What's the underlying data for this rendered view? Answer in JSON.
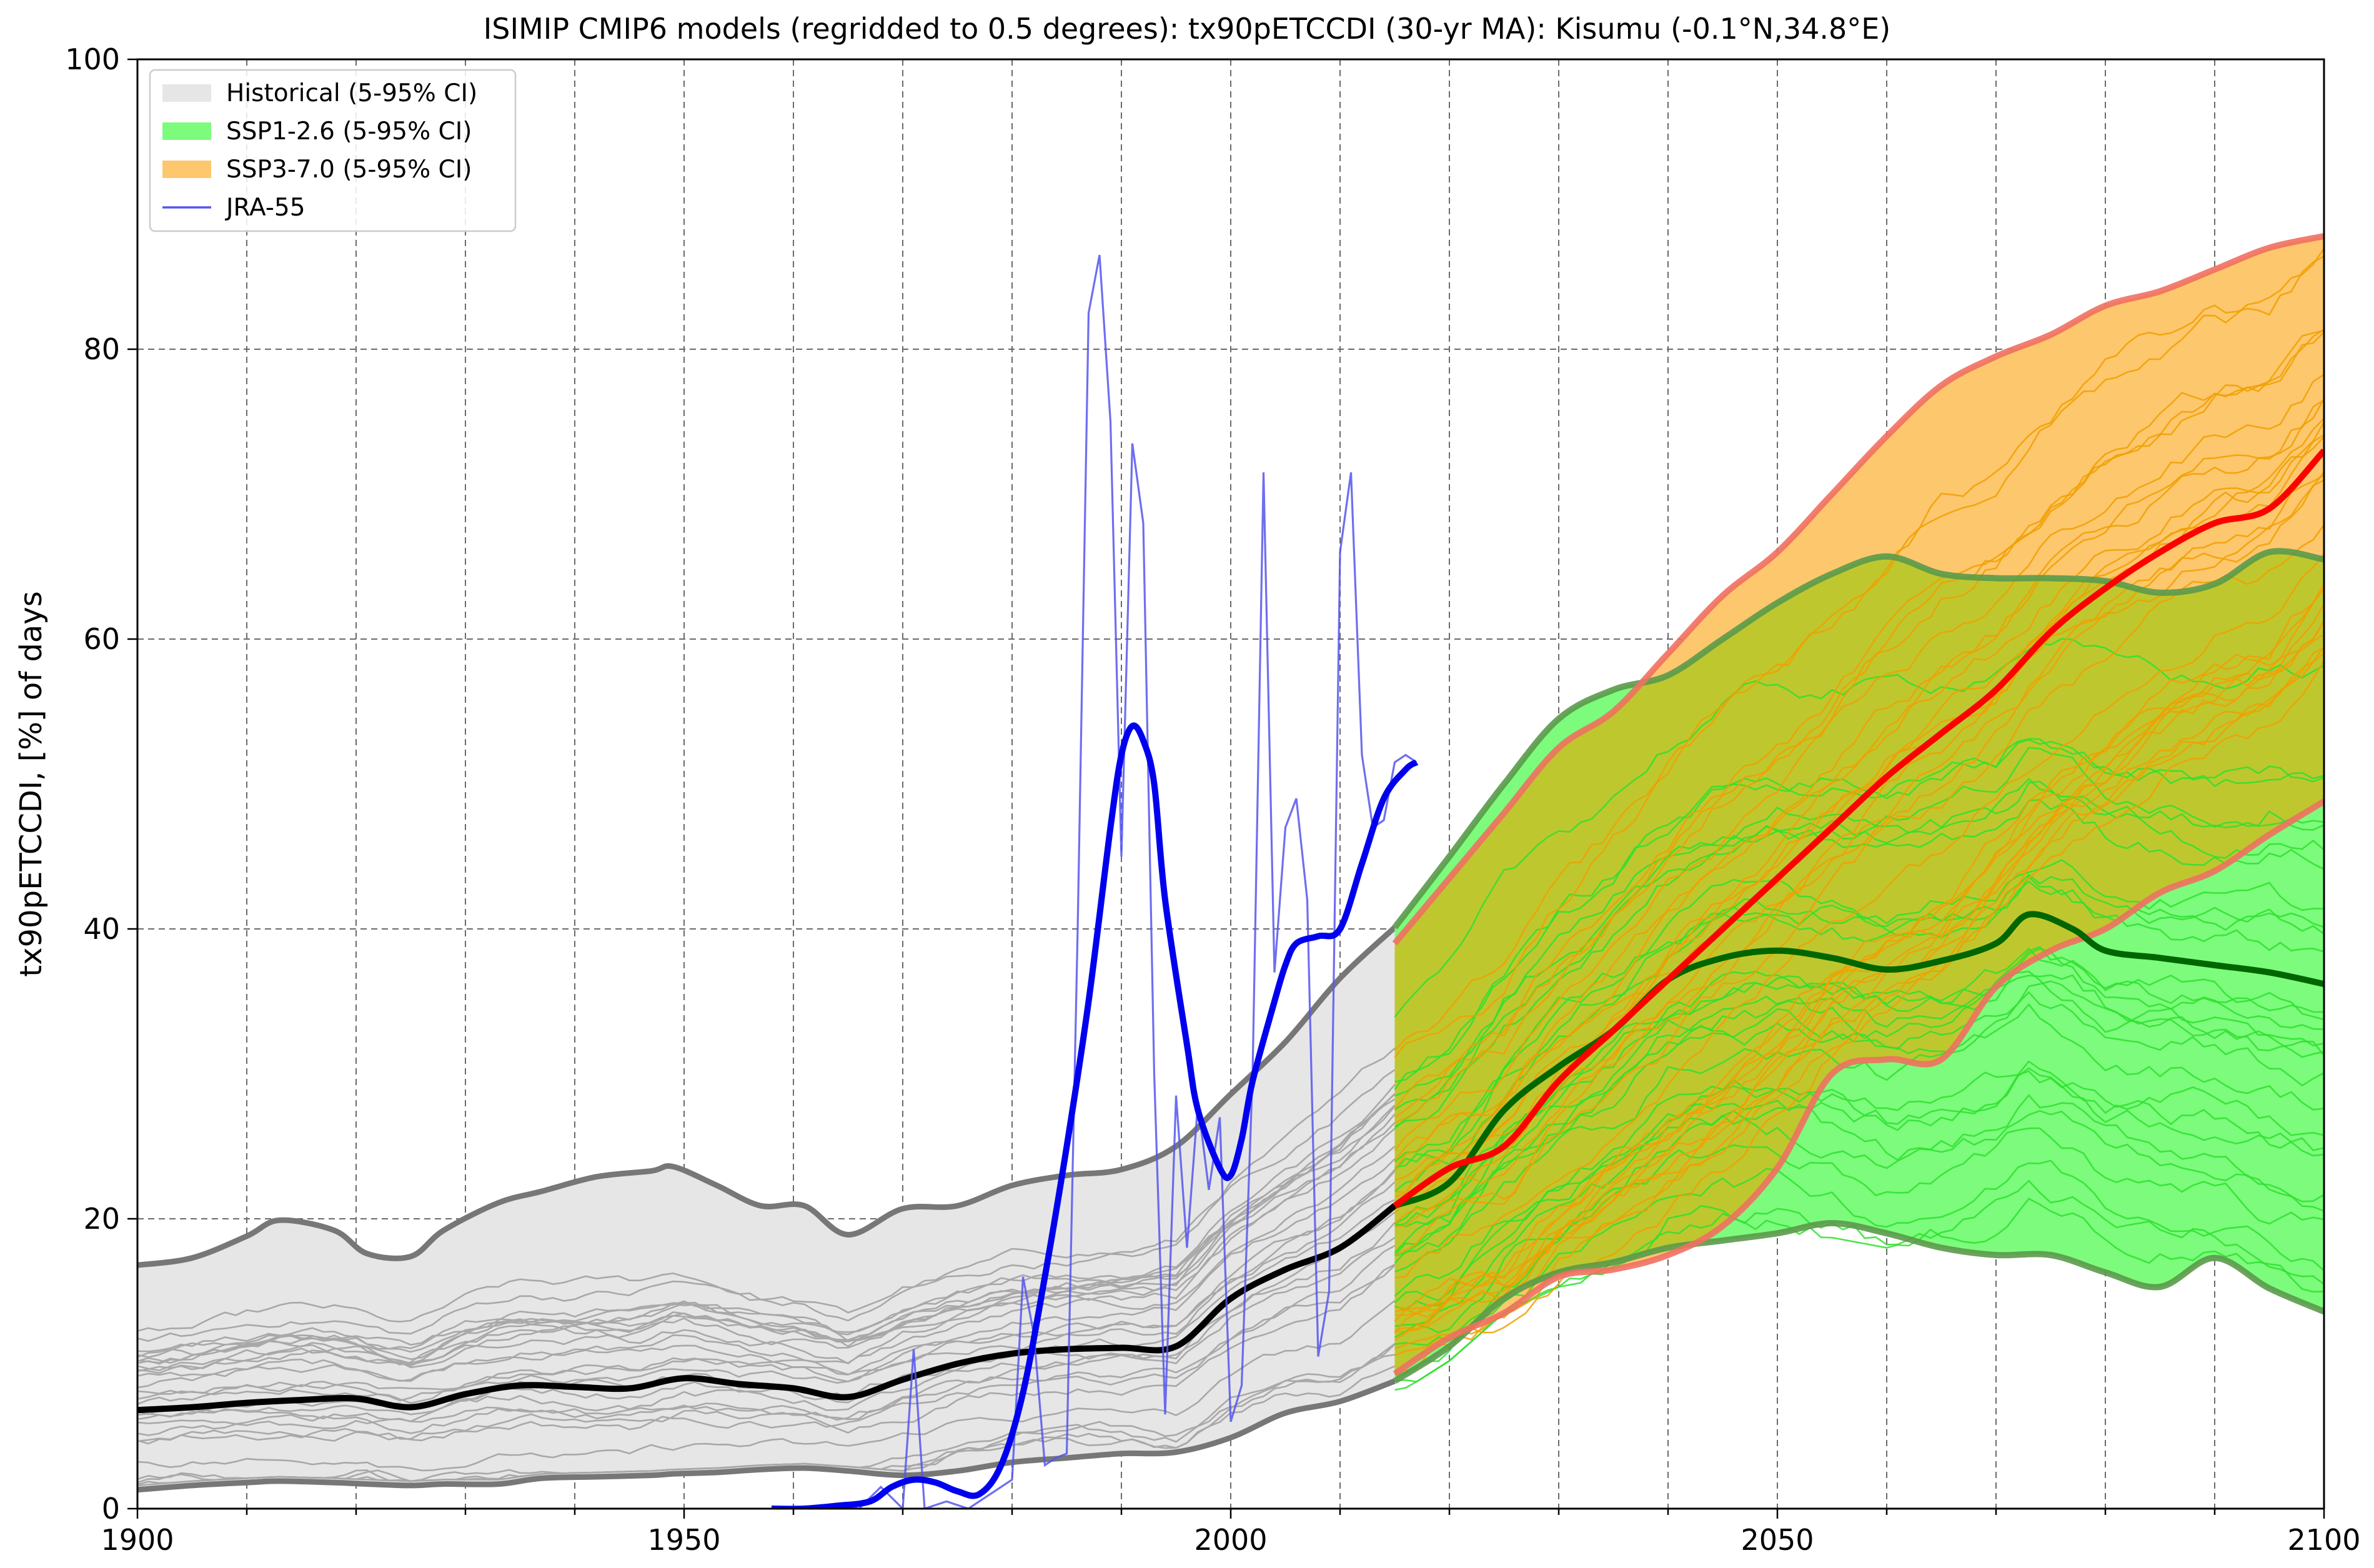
{
  "chart_data": {
    "type": "line",
    "title": "ISIMIP CMIP6 models (regridded to 0.5 degrees): tx90pETCCDI (30-yr MA): Kisumu (-0.1°N,34.8°E)",
    "xlabel": "",
    "ylabel": "tx90pETCCDI, [%] of days",
    "xlim": [
      1900,
      2100
    ],
    "ylim": [
      0,
      100
    ],
    "xticks": [
      1900,
      1950,
      2000,
      2050,
      2100
    ],
    "yticks": [
      0,
      20,
      40,
      60,
      80,
      100
    ],
    "grid": true,
    "legend_position": "top-left",
    "legend": [
      {
        "label": "Historical (5-95% CI)",
        "kind": "patch",
        "color": "#e6e6e6"
      },
      {
        "label": "SSP1-2.6 (5-95% CI)",
        "kind": "patch",
        "color": "#7dfb7d"
      },
      {
        "label": "SSP3-7.0 (5-95% CI)",
        "kind": "patch",
        "color": "#fdc76e"
      },
      {
        "label": "JRA-55",
        "kind": "line",
        "color": "#5555ee"
      }
    ],
    "colors": {
      "historical_fill": "#e6e6e6",
      "historical_edge": "#777777",
      "historical_members": "#a8a8a8",
      "historical_mean": "#000000",
      "ssp126_fill": "#7dfb7d",
      "ssp126_edge": "#5a9a4a",
      "ssp126_members": "#2ee02e",
      "ssp126_mean": "#006600",
      "ssp370_fill": "#fdc76e",
      "ssp370_edge": "#f07060",
      "ssp370_members": "#f0a000",
      "ssp370_mean": "#ff0000",
      "overlap_fill": "#bfc72f",
      "jra55": "#5555ee",
      "jra55_smooth": "#0000ee"
    },
    "series": [
      {
        "name": "Historical (5-95% CI)",
        "role": "band",
        "x": [
          1900,
          1905,
          1910,
          1913,
          1918,
          1921,
          1925,
          1928,
          1933,
          1937,
          1942,
          1947,
          1949,
          1953,
          1957,
          1961,
          1965,
          1970,
          1975,
          1980,
          1985,
          1990,
          1995,
          2000,
          2005,
          2010,
          2015
        ],
        "lower": [
          1.3,
          1.6,
          1.8,
          1.9,
          1.8,
          1.7,
          1.6,
          1.7,
          1.7,
          2.1,
          2.2,
          2.3,
          2.4,
          2.5,
          2.7,
          2.8,
          2.6,
          2.3,
          2.6,
          3.2,
          3.5,
          3.8,
          3.9,
          4.9,
          6.6,
          7.4,
          8.8
        ],
        "upper": [
          16.8,
          17.3,
          18.8,
          19.9,
          19.2,
          17.6,
          17.4,
          19.2,
          21.1,
          21.9,
          22.9,
          23.3,
          23.6,
          22.3,
          20.9,
          20.9,
          18.9,
          20.7,
          20.9,
          22.3,
          23.0,
          23.4,
          25.0,
          28.6,
          32.2,
          36.6,
          40.1
        ]
      },
      {
        "name": "Historical mean",
        "role": "mean",
        "x": [
          1900,
          1905,
          1910,
          1915,
          1920,
          1925,
          1930,
          1935,
          1940,
          1945,
          1950,
          1955,
          1960,
          1965,
          1970,
          1975,
          1980,
          1985,
          1990,
          1995,
          2000,
          2005,
          2010,
          2015
        ],
        "y": [
          6.8,
          7.0,
          7.3,
          7.5,
          7.6,
          7.0,
          7.9,
          8.5,
          8.4,
          8.3,
          9.0,
          8.6,
          8.3,
          7.7,
          8.9,
          10.0,
          10.7,
          11.0,
          11.1,
          11.2,
          14.5,
          16.5,
          18.0,
          20.9
        ]
      },
      {
        "name": "SSP1-2.6 (5-95% CI)",
        "role": "band",
        "x": [
          2015,
          2020,
          2025,
          2030,
          2035,
          2040,
          2045,
          2050,
          2055,
          2060,
          2065,
          2070,
          2075,
          2080,
          2085,
          2090,
          2095,
          2100
        ],
        "lower": [
          8.8,
          11.2,
          14.5,
          16.3,
          17.0,
          18.0,
          18.5,
          19.0,
          19.7,
          19.0,
          18.0,
          17.5,
          17.5,
          16.3,
          15.3,
          17.3,
          15.2,
          13.6
        ],
        "upper": [
          40.1,
          45.0,
          50.0,
          54.5,
          56.5,
          57.5,
          60.0,
          62.5,
          64.5,
          65.7,
          64.5,
          64.2,
          64.2,
          64.0,
          63.2,
          63.8,
          66.0,
          65.5
        ]
      },
      {
        "name": "SSP1-2.6 mean",
        "role": "mean",
        "x": [
          2015,
          2020,
          2025,
          2030,
          2035,
          2040,
          2045,
          2050,
          2055,
          2060,
          2065,
          2070,
          2073,
          2077,
          2080,
          2085,
          2090,
          2095,
          2100
        ],
        "y": [
          20.9,
          22.5,
          27.5,
          30.5,
          33.0,
          36.5,
          38.0,
          38.5,
          38.0,
          37.2,
          37.8,
          39.0,
          41.0,
          40.0,
          38.5,
          38.0,
          37.5,
          37.0,
          36.2
        ]
      },
      {
        "name": "SSP3-7.0 (5-95% CI)",
        "role": "band",
        "x": [
          2015,
          2020,
          2025,
          2030,
          2035,
          2040,
          2045,
          2050,
          2055,
          2060,
          2065,
          2070,
          2075,
          2080,
          2085,
          2090,
          2095,
          2100
        ],
        "lower": [
          9.3,
          11.8,
          13.5,
          16.0,
          16.5,
          17.5,
          19.5,
          23.5,
          30.0,
          31.0,
          31.0,
          36.0,
          38.5,
          40.0,
          42.5,
          44.0,
          46.5,
          48.8
        ],
        "upper": [
          39.0,
          43.5,
          48.0,
          52.5,
          55.0,
          59.0,
          63.0,
          66.0,
          70.0,
          74.0,
          77.5,
          79.5,
          81.0,
          83.0,
          84.0,
          85.5,
          87.0,
          87.8
        ]
      },
      {
        "name": "SSP3-7.0 mean",
        "role": "mean",
        "x": [
          2015,
          2020,
          2025,
          2030,
          2035,
          2040,
          2045,
          2050,
          2055,
          2060,
          2065,
          2070,
          2075,
          2080,
          2085,
          2090,
          2095,
          2100
        ],
        "y": [
          20.9,
          23.5,
          25.0,
          29.5,
          33.0,
          36.5,
          40.0,
          43.5,
          47.0,
          50.5,
          53.5,
          56.5,
          60.5,
          63.5,
          66.0,
          68.0,
          69.0,
          73.0
        ]
      },
      {
        "name": "JRA-55",
        "role": "annual",
        "x": [
          1958,
          1960,
          1962,
          1964,
          1966,
          1968,
          1970,
          1971,
          1972,
          1974,
          1976,
          1978,
          1980,
          1981,
          1982,
          1983,
          1984,
          1985,
          1986,
          1987,
          1988,
          1989,
          1990,
          1991,
          1992,
          1993,
          1994,
          1995,
          1996,
          1997,
          1998,
          1999,
          2000,
          2001,
          2002,
          2003,
          2004,
          2005,
          2006,
          2007,
          2008,
          2009,
          2010,
          2011,
          2012,
          2013,
          2014,
          2015,
          2016,
          2017
        ],
        "y": [
          0,
          0,
          0,
          0.3,
          0,
          1.5,
          0,
          11,
          0,
          0.5,
          0,
          1,
          2,
          16,
          12,
          3,
          3.5,
          3.8,
          40,
          82.5,
          86.5,
          75,
          45,
          73.5,
          68,
          30,
          6.5,
          28.5,
          18,
          28,
          22,
          27,
          6,
          8.5,
          30,
          71.5,
          37,
          47,
          49,
          42,
          10.5,
          15,
          66,
          71.5,
          52,
          47,
          47.5,
          51.5,
          52,
          51.5
        ]
      },
      {
        "name": "JRA-55 smoothed",
        "role": "smooth",
        "x": [
          1958,
          1961,
          1964,
          1967,
          1969,
          1971,
          1973,
          1975,
          1977,
          1979,
          1981,
          1983,
          1985,
          1987,
          1989,
          1990,
          1991,
          1992,
          1993,
          1994,
          1996,
          1997,
          1999,
          2000,
          2001,
          2002,
          2004,
          2005,
          2006,
          2008,
          2010,
          2012,
          2014,
          2016,
          2017
        ],
        "y": [
          0,
          0,
          0.2,
          0.5,
          1.5,
          2.0,
          1.8,
          1.2,
          1.0,
          3.0,
          8.0,
          16.0,
          25.0,
          35.0,
          47.0,
          52.0,
          54.0,
          53.0,
          50.0,
          42.0,
          32.0,
          27.5,
          23.5,
          23.0,
          25.5,
          29.5,
          35.0,
          37.5,
          39.0,
          39.5,
          40.0,
          44.5,
          49.0,
          51.0,
          51.5
        ]
      }
    ]
  }
}
